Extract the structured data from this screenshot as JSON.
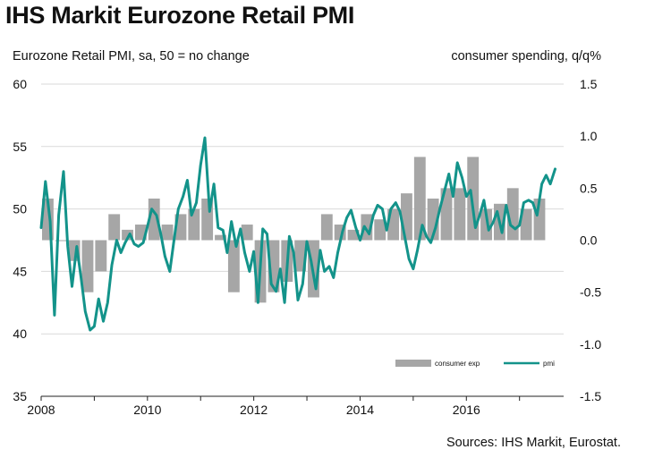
{
  "title": "IHS Markit Eurozone Retail PMI",
  "left_axis_title": "Eurozone Retail PMI, sa, 50 = no change",
  "right_axis_title": "consumer spending, q/q%",
  "source": "Sources: IHS Markit, Eurostat.",
  "colors": {
    "bars": "#a6a6a6",
    "line": "#13938a",
    "grid": "#d9d9d9"
  },
  "chart_data": {
    "type": "bar+line",
    "x_tick_labels": [
      "2008",
      "2010",
      "2012",
      "2014",
      "2016"
    ],
    "left_axis": {
      "min": 35,
      "max": 60,
      "ticks": [
        60,
        55,
        50,
        45,
        40,
        35
      ]
    },
    "right_axis": {
      "min": -1.5,
      "max": 1.5,
      "tick_labels": [
        "1.5",
        "1.0",
        "0.5",
        "0.0",
        "-0.5",
        "-1.0",
        "-1.5"
      ],
      "ticks": [
        1.5,
        1.0,
        0.5,
        0.0,
        -0.5,
        -1.0,
        -1.5
      ]
    },
    "grid": "horizontal",
    "legend": {
      "placement": "bottom-right",
      "bar_label": "consumer exp",
      "line_label": "pmi"
    },
    "bars": {
      "name": "consumer exp",
      "axis": "right",
      "quarter_start": [
        2008.0,
        2008.25,
        2008.5,
        2008.75,
        2009.0,
        2009.25,
        2009.5,
        2009.75,
        2010.0,
        2010.25,
        2010.5,
        2010.75,
        2011.0,
        2011.25,
        2011.5,
        2011.75,
        2012.0,
        2012.25,
        2012.5,
        2012.75,
        2013.0,
        2013.25,
        2013.5,
        2013.75,
        2014.0,
        2014.25,
        2014.5,
        2014.75,
        2015.0,
        2015.25,
        2015.5,
        2015.75,
        2016.0,
        2016.25,
        2016.5,
        2016.75,
        2017.0,
        2017.25
      ],
      "values": [
        0.4,
        0.0,
        -0.2,
        -0.5,
        -0.3,
        0.25,
        0.1,
        0.15,
        0.4,
        0.15,
        0.25,
        0.3,
        0.4,
        0.05,
        -0.5,
        0.15,
        -0.6,
        -0.5,
        -0.4,
        -0.3,
        -0.55,
        0.25,
        0.15,
        0.1,
        0.25,
        0.2,
        0.3,
        0.45,
        0.8,
        0.4,
        0.5,
        0.5,
        0.8,
        0.3,
        0.35,
        0.5,
        0.3,
        0.4
      ]
    },
    "series": [
      {
        "name": "pmi",
        "axis": "left",
        "x": [
          2008.0,
          2008.08,
          2008.17,
          2008.25,
          2008.33,
          2008.42,
          2008.5,
          2008.58,
          2008.67,
          2008.75,
          2008.83,
          2008.92,
          2009.0,
          2009.08,
          2009.17,
          2009.25,
          2009.33,
          2009.42,
          2009.5,
          2009.58,
          2009.67,
          2009.75,
          2009.83,
          2009.92,
          2010.0,
          2010.08,
          2010.17,
          2010.25,
          2010.33,
          2010.42,
          2010.5,
          2010.58,
          2010.67,
          2010.75,
          2010.83,
          2010.92,
          2011.0,
          2011.08,
          2011.17,
          2011.25,
          2011.33,
          2011.42,
          2011.5,
          2011.58,
          2011.67,
          2011.75,
          2011.83,
          2011.92,
          2012.0,
          2012.08,
          2012.17,
          2012.25,
          2012.33,
          2012.42,
          2012.5,
          2012.58,
          2012.67,
          2012.75,
          2012.83,
          2012.92,
          2013.0,
          2013.08,
          2013.17,
          2013.25,
          2013.33,
          2013.42,
          2013.5,
          2013.58,
          2013.67,
          2013.75,
          2013.83,
          2013.92,
          2014.0,
          2014.08,
          2014.17,
          2014.25,
          2014.33,
          2014.42,
          2014.5,
          2014.58,
          2014.67,
          2014.75,
          2014.83,
          2014.92,
          2015.0,
          2015.08,
          2015.17,
          2015.25,
          2015.33,
          2015.42,
          2015.5,
          2015.58,
          2015.67,
          2015.75,
          2015.83,
          2015.92,
          2016.0,
          2016.08,
          2016.17,
          2016.25,
          2016.33,
          2016.42,
          2016.5,
          2016.58,
          2016.67,
          2016.75,
          2016.83,
          2016.92,
          2017.0,
          2017.08,
          2017.17,
          2017.25,
          2017.33,
          2017.42,
          2017.5,
          2017.58,
          2017.67
        ],
        "values": [
          48.5,
          52.2,
          49.0,
          41.5,
          49.5,
          53.0,
          47.0,
          43.8,
          47.0,
          44.5,
          41.8,
          40.3,
          40.6,
          42.8,
          41.0,
          42.5,
          45.5,
          47.5,
          46.5,
          47.3,
          48.0,
          47.2,
          47.0,
          47.3,
          48.6,
          50.0,
          49.5,
          48.0,
          46.2,
          45.0,
          47.5,
          50.0,
          51.0,
          52.3,
          49.5,
          50.5,
          53.5,
          55.7,
          49.8,
          52.0,
          48.5,
          48.3,
          46.5,
          49.0,
          47.0,
          48.4,
          46.5,
          45.0,
          46.6,
          42.5,
          48.4,
          48.0,
          44.0,
          43.4,
          45.2,
          42.5,
          47.8,
          46.5,
          42.7,
          44.0,
          47.4,
          45.8,
          43.6,
          46.7,
          45.0,
          45.4,
          44.5,
          46.5,
          48.2,
          49.3,
          49.9,
          48.5,
          47.5,
          48.6,
          48.0,
          49.5,
          50.3,
          50.0,
          48.3,
          50.0,
          50.5,
          49.8,
          48.0,
          46.0,
          45.2,
          46.7,
          48.7,
          47.8,
          47.3,
          48.5,
          50.0,
          51.3,
          52.8,
          51.0,
          53.7,
          52.5,
          51.0,
          51.5,
          48.5,
          49.5,
          50.7,
          48.3,
          48.9,
          49.8,
          48.1,
          50.3,
          48.7,
          48.4,
          48.7,
          50.5,
          50.7,
          50.5,
          49.5,
          52.0,
          52.7,
          52.0,
          53.2
        ]
      }
    ]
  }
}
